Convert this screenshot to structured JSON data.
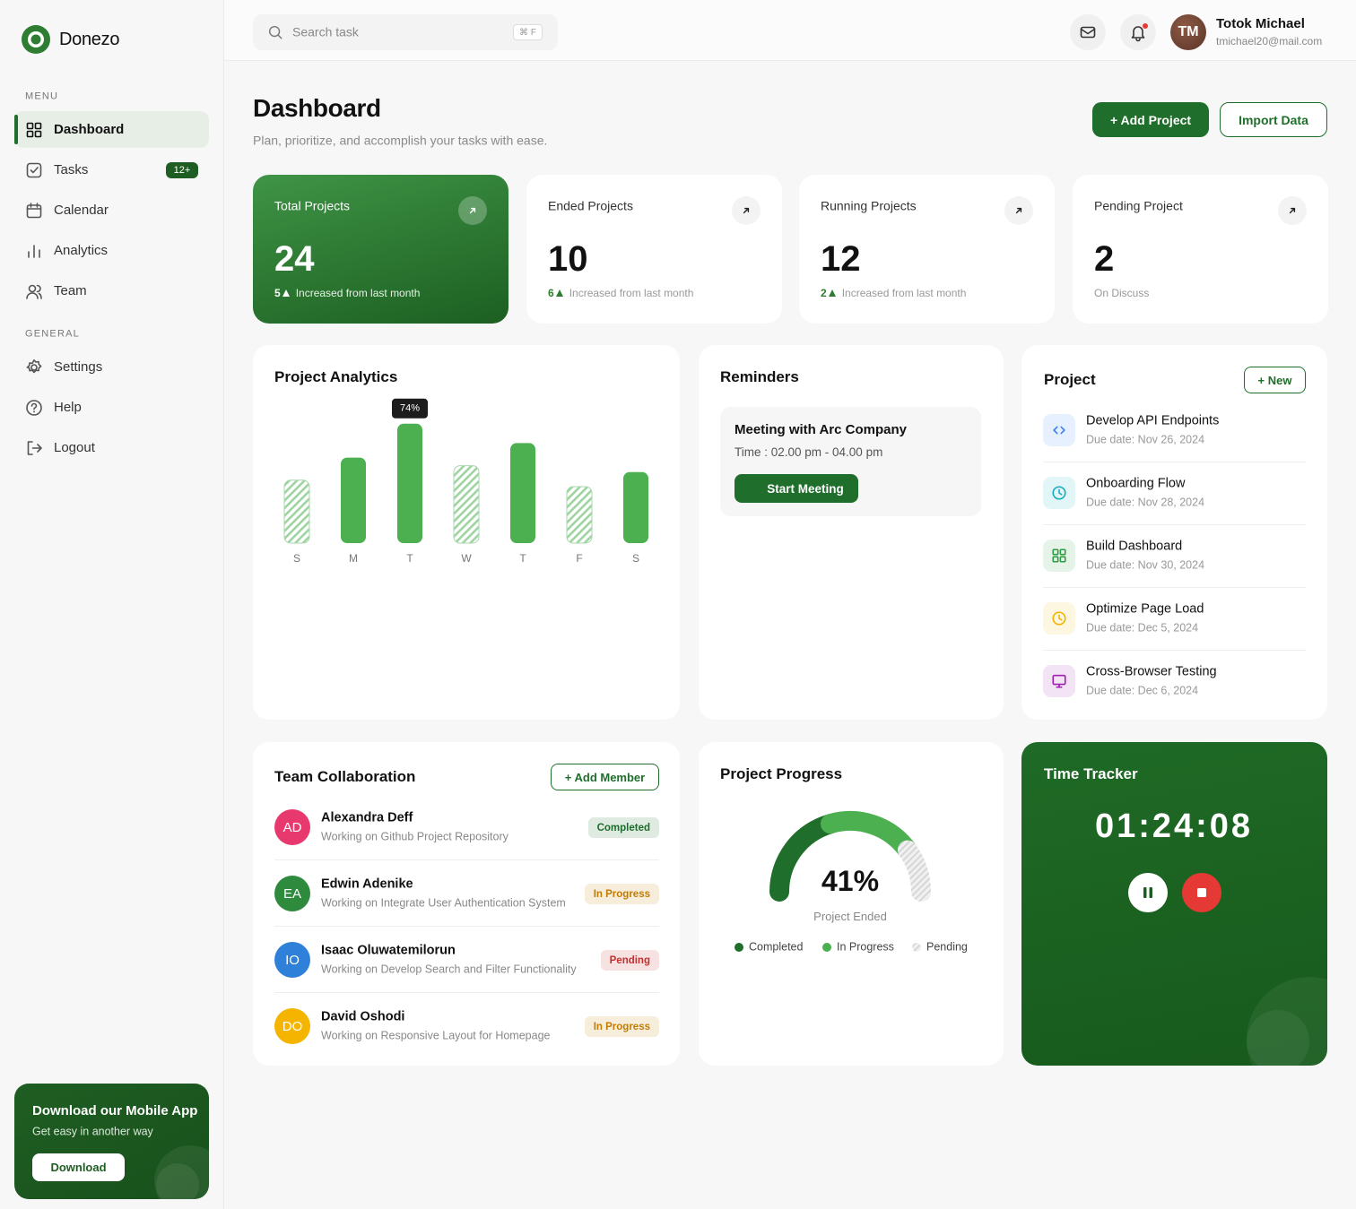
{
  "sidebar": {
    "brand": "Donezo",
    "menu_label": "MENU",
    "menu": [
      {
        "label": "Dashboard",
        "active": true
      },
      {
        "label": "Tasks",
        "badge": "12+"
      },
      {
        "label": "Calendar"
      },
      {
        "label": "Analytics"
      },
      {
        "label": "Team"
      }
    ],
    "general_label": "GENERAL",
    "general": [
      {
        "label": "Settings"
      },
      {
        "label": "Help"
      },
      {
        "label": "Logout"
      }
    ],
    "promo": {
      "title": "Download our Mobile App",
      "subtitle": "Get easy in another way",
      "button": "Download"
    }
  },
  "topbar": {
    "search_placeholder": "Search task",
    "shortcut": "⌘ F",
    "user": {
      "initials": "TM",
      "name": "Totok Michael",
      "email": "tmichael20@mail.com"
    }
  },
  "header": {
    "title": "Dashboard",
    "subtitle": "Plan, prioritize, and accomplish your tasks with ease.",
    "buttons": [
      "+ Add Project",
      "Import Data"
    ]
  },
  "stats": [
    {
      "title": "Total Projects",
      "value": 24,
      "delta": 5,
      "note": "Increased from last month",
      "highlight": true
    },
    {
      "title": "Ended Projects",
      "value": 10,
      "delta": 6,
      "note": "Increased from last month"
    },
    {
      "title": "Running Projects",
      "value": 12,
      "delta": 2,
      "note": "Increased from last month"
    },
    {
      "title": "Pending Project",
      "value": 2,
      "note": "On Discuss"
    }
  ],
  "analytics": {
    "title": "Project Analytics",
    "chart_data": {
      "type": "bar",
      "categories": [
        "S",
        "M",
        "T",
        "W",
        "T",
        "F",
        "S"
      ],
      "values": [
        39,
        53,
        74,
        48,
        62,
        35,
        44
      ],
      "value_labels": [
        null,
        null,
        "74%",
        null,
        null,
        null,
        null
      ],
      "color": "#4caf50",
      "hatched": [
        true,
        false,
        false,
        true,
        false,
        true,
        false
      ]
    }
  },
  "reminders": {
    "title": "Reminders",
    "item": {
      "title": "Meeting with Arc Company",
      "time": "Time : 02.00 pm - 04.00 pm",
      "button": "Start Meeting"
    }
  },
  "projects": {
    "title": "Project",
    "button": "+ New",
    "items": [
      {
        "name": "Develop API Endpoints",
        "due": "Due date: Nov 26, 2024",
        "color": "#3b82f6"
      },
      {
        "name": "Onboarding Flow",
        "due": "Due date: Nov 28, 2024",
        "color": "#14aebf"
      },
      {
        "name": "Build Dashboard",
        "due": "Due date: Nov 30, 2024",
        "color": "#2e9d45"
      },
      {
        "name": "Optimize Page Load",
        "due": "Due date: Dec 5, 2024",
        "color": "#f0b400"
      },
      {
        "name": "Cross-Browser Testing",
        "due": "Due date: Dec 6, 2024",
        "color": "#a01fb0"
      }
    ]
  },
  "team": {
    "title": "Team Collaboration",
    "button": "+ Add Member",
    "members": [
      {
        "initials": "AD",
        "name": "Alexandra Deff",
        "task": "Working on Github Project Repository",
        "status": "Completed",
        "color": "#e8396f",
        "status_color": "#1b6e2a"
      },
      {
        "initials": "EA",
        "name": "Edwin Adenike",
        "task": "Working on Integrate User Authentication System",
        "status": "In Progress",
        "color": "#2e8b3e",
        "status_color": "#c27c00"
      },
      {
        "initials": "IO",
        "name": "Isaac Oluwatemilorun",
        "task": "Working on Develop Search and Filter Functionality",
        "status": "Pending",
        "color": "#2f80d8",
        "status_color": "#c53030"
      },
      {
        "initials": "DO",
        "name": "David Oshodi",
        "task": "Working on Responsive Layout for Homepage",
        "status": "In Progress",
        "color": "#f5b400",
        "status_color": "#c27c00"
      }
    ]
  },
  "progress": {
    "title": "Project Progress",
    "value_label": "41%",
    "caption": "Project Ended",
    "segments": [
      {
        "name": "Completed",
        "value": 41,
        "color": "#1f6e2b"
      },
      {
        "name": "In Progress",
        "value": 39,
        "color": "#4caf50"
      },
      {
        "name": "Pending",
        "value": 20,
        "color": "#cfcfcf",
        "hatched": true
      }
    ]
  },
  "tracker": {
    "title": "Time Tracker",
    "time": "01:24:08"
  }
}
